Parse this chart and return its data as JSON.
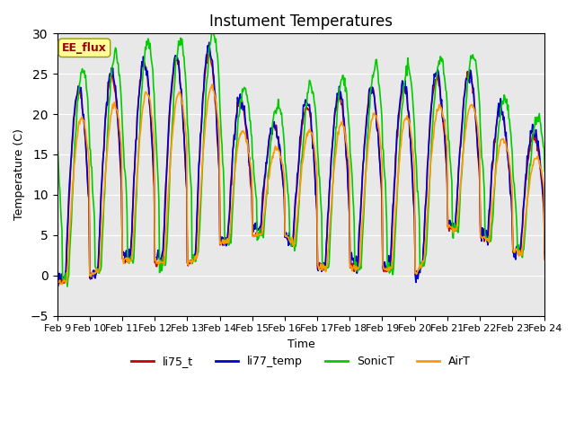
{
  "title": "Instument Temperatures",
  "xlabel": "Time",
  "ylabel": "Temperature (C)",
  "ylim": [
    -5,
    30
  ],
  "yticks": [
    -5,
    0,
    5,
    10,
    15,
    20,
    25,
    30
  ],
  "xtick_labels": [
    "Feb 9",
    "Feb 10",
    "Feb 11",
    "Feb 12",
    "Feb 13",
    "Feb 14",
    "Feb 15",
    "Feb 16",
    "Feb 17",
    "Feb 18",
    "Feb 19",
    "Feb 20",
    "Feb 21",
    "Feb 22",
    "Feb 23",
    "Feb 24"
  ],
  "colors": {
    "li75_t": "#cc0000",
    "li77_temp": "#0000cc",
    "SonicT": "#00cc00",
    "AirT": "#ff9900"
  },
  "bg_color": "#e8e8e8",
  "annotation_box_color": "#ffff99",
  "annotation_text": "EE_flux",
  "annotation_text_color": "#990000",
  "n_days": 15,
  "pts_per_day": 48
}
